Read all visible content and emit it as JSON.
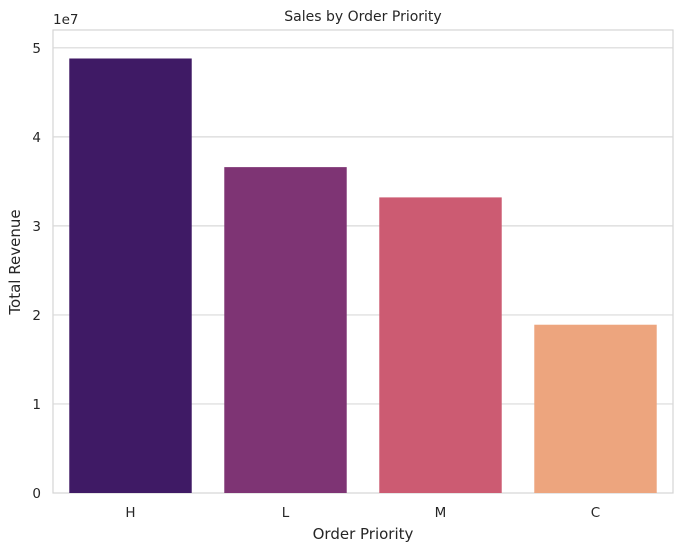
{
  "chart_data": {
    "type": "bar",
    "title": "Sales by Order Priority",
    "xlabel": "Order Priority",
    "ylabel": "Total Revenue",
    "y_offset_label": "1e7",
    "categories": [
      "H",
      "L",
      "M",
      "C"
    ],
    "values": [
      48800000,
      36600000,
      33200000,
      18900000
    ],
    "colors": [
      "#3f1a65",
      "#7e3474",
      "#cc5b72",
      "#eda57e"
    ],
    "ylim": [
      0,
      52000000
    ],
    "yticks": [
      0,
      10000000,
      20000000,
      30000000,
      40000000,
      50000000
    ],
    "ytick_labels": [
      "0",
      "1",
      "2",
      "3",
      "4",
      "5"
    ],
    "grid": true,
    "legend": "none"
  }
}
